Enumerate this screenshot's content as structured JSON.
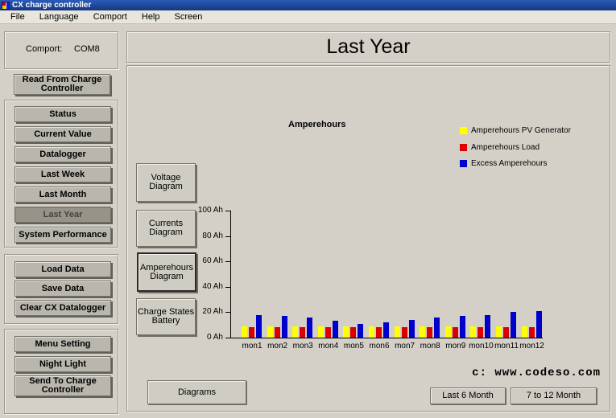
{
  "window": {
    "title": "CX charge controller"
  },
  "menu_bar": {
    "items": [
      "File",
      "Language",
      "Comport",
      "Help",
      "Screen"
    ]
  },
  "sidebar": {
    "comport_label": "Comport:",
    "comport_value": "COM8",
    "read_button": "Read From Charge Controller",
    "nav_buttons": [
      "Status",
      "Current Value",
      "Datalogger",
      "Last Week",
      "Last Month",
      "Last Year",
      "System Performance"
    ],
    "active_nav_index": 5,
    "data_buttons": [
      "Load Data",
      "Save Data",
      "Clear CX Datalogger"
    ],
    "settings_buttons": [
      "Menu Setting",
      "Night Light",
      "Send To Charge Controller"
    ]
  },
  "main": {
    "title": "Last Year",
    "chart_caption": "Amperehours",
    "legend": [
      {
        "label": "Amperehours PV Generator",
        "color": "#ffff00"
      },
      {
        "label": "Amperehours Load",
        "color": "#dd0000"
      },
      {
        "label": "Excess Amperehours",
        "color": "#0000cc"
      }
    ],
    "diagram_buttons": [
      "Voltage Diagram",
      "Currents Diagram",
      "Amperehours Diagram",
      "Charge States Battery"
    ],
    "selected_diagram_index": 2,
    "footer": {
      "diagrams_button": "Diagrams",
      "watermark": "c: www.codeso.com",
      "last6_button": "Last 6 Month",
      "b7to12_button": "7 to 12 Month"
    }
  },
  "chart_data": {
    "type": "bar",
    "title": "Amperehours",
    "categories": [
      "mon1",
      "mon2",
      "mon3",
      "mon4",
      "mon5",
      "mon6",
      "mon7",
      "mon8",
      "mon9",
      "mon10",
      "mon11",
      "mon12"
    ],
    "series": [
      {
        "name": "Amperehours PV Generator",
        "color": "#ffff00",
        "values": [
          9,
          9,
          9,
          9,
          9,
          9,
          9,
          9,
          9,
          9,
          9,
          9
        ]
      },
      {
        "name": "Amperehours Load",
        "color": "#dd0000",
        "values": [
          8,
          8,
          8,
          8,
          8,
          8,
          8,
          8,
          8,
          8,
          8,
          8
        ]
      },
      {
        "name": "Excess Amperehours",
        "color": "#0000cc",
        "values": [
          18,
          17,
          16,
          13,
          11,
          12,
          14,
          16,
          17,
          18,
          20,
          21
        ]
      }
    ],
    "ylabel": "Ah",
    "ytick_values": [
      0,
      20,
      40,
      60,
      80,
      100
    ],
    "ytick_labels": [
      "0 Ah",
      "20 Ah",
      "40 Ah",
      "60 Ah",
      "80 Ah",
      "100 Ah"
    ],
    "ylim": [
      0,
      100
    ],
    "grid": false,
    "legend_position": "top-right"
  }
}
